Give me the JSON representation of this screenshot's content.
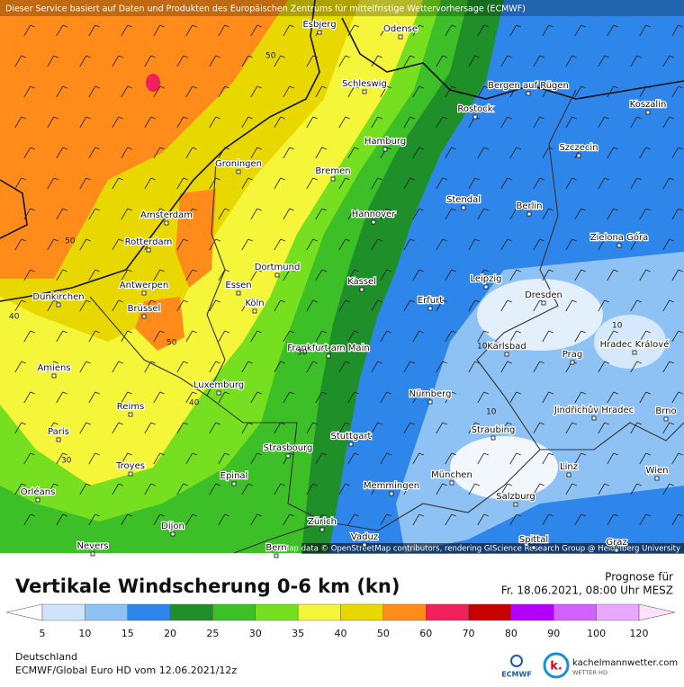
{
  "map": {
    "attribution_top": "Dieser Service basiert auf Daten und Produkten des Europäischen Zentrums für mittelfristige Wettervorhersage (ECMWF)",
    "attribution_bottom": "Map data © OpenStreetMap contributors, rendering GIScience Research Group @ Heidelberg University",
    "cities": [
      "Esbjerg",
      "Odense",
      "Schleswig",
      "Bergen auf Rügen",
      "Rostock",
      "Koszalin",
      "Hamburg",
      "Szczecin",
      "Groningen",
      "Bremen",
      "Stendal",
      "Berlin",
      "Amsterdam",
      "Hannover",
      "Zielona Góra",
      "Rotterdam",
      "Dortmund",
      "Leipzig",
      "Antwerpen",
      "Essen",
      "Kassel",
      "Dunkirchen",
      "Erfurt",
      "Dresden",
      "Köln",
      "Brüssel",
      "Frankfurt am Main",
      "Karlsbad",
      "Hradec Králové",
      "Prag",
      "Amiens",
      "Luxemburg",
      "Nürnberg",
      "Jindřichův Hradec",
      "Reims",
      "Paris",
      "Straubing",
      "Stuttgart",
      "Brno",
      "Strasbourg",
      "Troyes",
      "Epinal",
      "Linz",
      "München",
      "Wien",
      "Memmingen",
      "Orléans",
      "Salzburg",
      "Dijon",
      "Zürich",
      "Vaduz",
      "Spittal",
      "Nevers",
      "Bern",
      "Graz"
    ],
    "contour_labels": [
      50,
      50,
      40,
      50,
      40,
      30,
      30,
      10,
      10,
      10
    ]
  },
  "legend": {
    "title": "Vertikale Windscherung 0-6 km (kn)",
    "forecast_label": "Prognose für",
    "forecast_time": "Fr. 18.06.2021, 08:00 Uhr MESZ",
    "colors": [
      "#cfe3fb",
      "#8ec2f5",
      "#2f86ea",
      "#1f8f2a",
      "#3cbf27",
      "#76e020",
      "#f5f53a",
      "#e8d800",
      "#ff8c1a",
      "#f0205a",
      "#c80000",
      "#b400ff",
      "#d060ff",
      "#e8a8ff"
    ],
    "ticks": [
      5,
      10,
      15,
      20,
      25,
      30,
      35,
      40,
      50,
      60,
      70,
      80,
      90,
      100,
      120
    ]
  },
  "footer": {
    "region": "Deutschland",
    "model": "ECMWF/Global Euro HD vom  12.06.2021/12z",
    "logo_ecmwf": "ECMWF",
    "logo_site": "kachelmannwetter.com",
    "logo_sub": "WETTER HD"
  }
}
